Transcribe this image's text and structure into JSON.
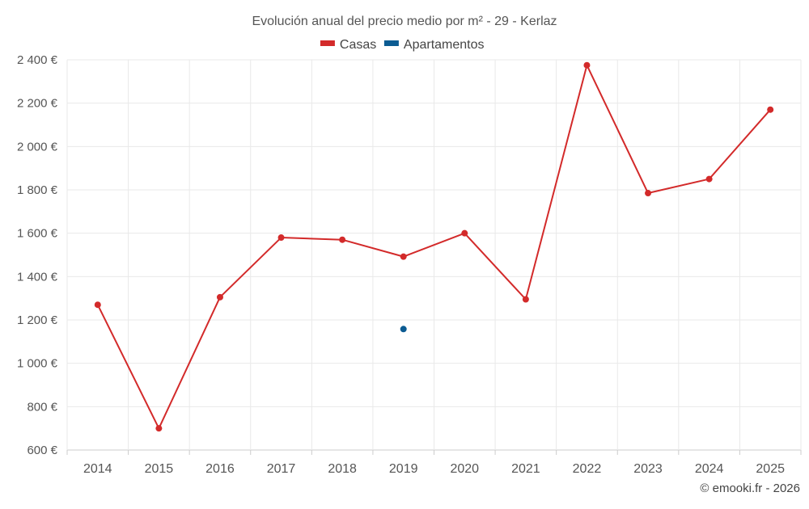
{
  "chart_data": {
    "type": "line",
    "title": "Evolución anual del precio medio por m² - 29 - Kerlaz",
    "x": [
      "2014",
      "2015",
      "2016",
      "2017",
      "2018",
      "2019",
      "2020",
      "2021",
      "2022",
      "2023",
      "2024",
      "2025"
    ],
    "series": [
      {
        "name": "Casas",
        "color": "#d32a2a",
        "values": [
          1270,
          700,
          1305,
          1580,
          1570,
          1492,
          1600,
          1295,
          2375,
          1785,
          1850,
          2170
        ]
      },
      {
        "name": "Apartamentos",
        "color": "#0b5b92",
        "values": [
          null,
          null,
          null,
          null,
          null,
          1158,
          null,
          null,
          null,
          null,
          null,
          null
        ]
      }
    ],
    "ylim": [
      600,
      2400
    ],
    "yticks": [
      600,
      800,
      1000,
      1200,
      1400,
      1600,
      1800,
      2000,
      2200,
      2400
    ],
    "ytick_labels": [
      "600 €",
      "800 €",
      "1 000 €",
      "1 200 €",
      "1 400 €",
      "1 600 €",
      "1 800 €",
      "2 000 €",
      "2 200 €",
      "2 400 €"
    ],
    "xlabel": "",
    "ylabel": "",
    "grid": true,
    "legend_position": "top-center"
  },
  "credit": "© emooki.fr - 2026"
}
